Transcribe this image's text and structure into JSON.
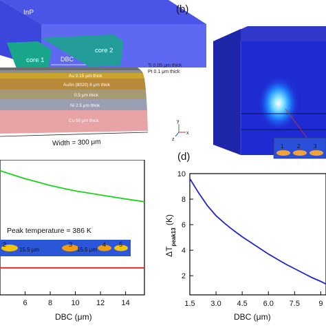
{
  "panel_a": {
    "substrate_label": "InP",
    "core1_label": "core 1",
    "core2_label": "core 2",
    "gap_label": "DBC",
    "width_label": "Width = 300 μm",
    "layers": [
      {
        "label": "Ti 0.05 μm thick",
        "color": "#6d6d6d"
      },
      {
        "label": "Pt 0.1 μm thick",
        "color": "#8f8f8f"
      },
      {
        "label": "Au 0.15 μm thick",
        "color": "#c9a32c"
      },
      {
        "label": "AuSn (8020) 6 μm thick",
        "color": "#b9893a"
      },
      {
        "label": "0.5 μm thick",
        "color": "#a79a73"
      },
      {
        "label": "Ni 2.5 μm thick",
        "color": "#9aa0b4"
      },
      {
        "label": "Cu 50 μm thick",
        "color": "#e7a3a6"
      }
    ]
  },
  "panel_b": {
    "panel_letter": "(b)",
    "core_numbers": [
      "1",
      "2",
      "3"
    ],
    "axis_labels": [
      "y",
      "z",
      "x"
    ]
  },
  "panel_c": {
    "xlabel": "DBC (μm)",
    "annotation": "Peak temperature = 386 K",
    "inset_numbers": [
      "2",
      "3",
      "4",
      "5"
    ],
    "inset_spacing_labels": [
      "15.5 μm",
      "15.5 μm"
    ],
    "colors": {
      "green": "#18d418",
      "red": "#e0201e"
    }
  },
  "panel_d": {
    "panel_letter": "(d)",
    "ylabel_main": "ΔT",
    "ylabel_sub": "peak13",
    "ylabel_unit": " (K)",
    "xlabel": "DBC (μm)",
    "color": "#1d22d6"
  },
  "chart_data": [
    {
      "type": "line",
      "panel": "c",
      "xlabel": "DBC (μm)",
      "x_ticks": [
        6,
        8,
        10,
        12,
        14
      ],
      "xlim": [
        4,
        15.5
      ],
      "series": [
        {
          "color": "#18d418",
          "x": [
            4,
            5,
            6,
            7,
            8,
            9,
            10,
            11,
            12,
            13,
            14,
            15.5
          ],
          "y": [
            0.92,
            0.89,
            0.86,
            0.835,
            0.81,
            0.79,
            0.77,
            0.755,
            0.74,
            0.725,
            0.71,
            0.69
          ]
        },
        {
          "color": "#e0201e",
          "x": [
            4,
            15.5
          ],
          "y": [
            0.2,
            0.2
          ]
        }
      ]
    },
    {
      "type": "line",
      "panel": "d",
      "xlabel": "DBC (μm)",
      "ylabel": "ΔT peak13 (K)",
      "x_ticks": [
        "1.5",
        "3.0",
        "4.5",
        "6.0",
        "7.5",
        "9"
      ],
      "y_ticks": [
        2,
        4,
        6,
        8,
        10
      ],
      "xlim": [
        1.5,
        9.3
      ],
      "ylim": [
        0.5,
        10
      ],
      "series": [
        {
          "color": "#1d22d6",
          "x": [
            1.5,
            2.0,
            2.5,
            3.0,
            3.5,
            4.0,
            4.5,
            5.0,
            5.5,
            6.0,
            6.5,
            7.0,
            7.5,
            8.0,
            8.5,
            9.0,
            9.3
          ],
          "y": [
            9.6,
            8.5,
            7.5,
            6.7,
            6.1,
            5.55,
            5.05,
            4.6,
            4.15,
            3.7,
            3.3,
            2.9,
            2.55,
            2.2,
            1.85,
            1.55,
            1.35
          ]
        }
      ]
    }
  ]
}
